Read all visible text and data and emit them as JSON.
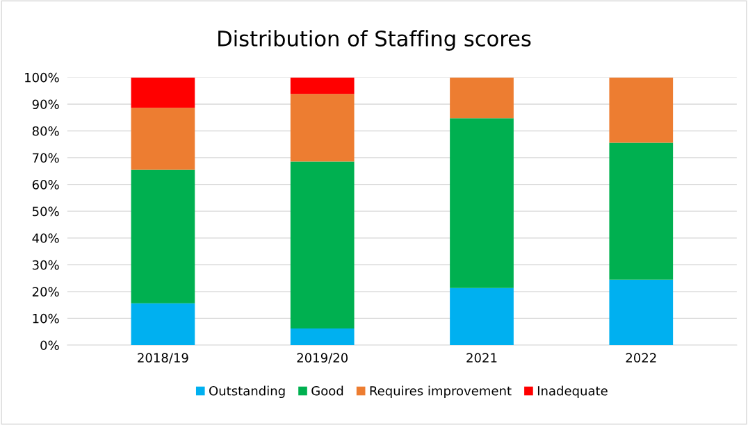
{
  "chart_data": {
    "type": "bar",
    "title": "Distribution of Staffing scores",
    "stacked": true,
    "categories": [
      "2018/19",
      "2019/20",
      "2021",
      "2022"
    ],
    "series": [
      {
        "name": "Outstanding",
        "color": "#00b0f0",
        "values": [
          15.6,
          6.2,
          21.3,
          24.4
        ]
      },
      {
        "name": "Good",
        "color": "#00b050",
        "values": [
          49.9,
          62.4,
          63.4,
          51.2
        ]
      },
      {
        "name": "Requires improvement",
        "color": "#ed7d31",
        "values": [
          23.1,
          25.2,
          15.3,
          24.4
        ]
      },
      {
        "name": "Inadequate",
        "color": "#ff0000",
        "values": [
          11.4,
          6.2,
          0,
          0
        ]
      }
    ],
    "ylim": [
      0,
      100
    ],
    "yticks": [
      {
        "value": 0,
        "label": "0%"
      },
      {
        "value": 10,
        "label": "10%"
      },
      {
        "value": 20,
        "label": "20%"
      },
      {
        "value": 30,
        "label": "30%"
      },
      {
        "value": 40,
        "label": "40%"
      },
      {
        "value": 50,
        "label": "50%"
      },
      {
        "value": 60,
        "label": "60%"
      },
      {
        "value": 70,
        "label": "70%"
      },
      {
        "value": 80,
        "label": "80%"
      },
      {
        "value": 90,
        "label": "90%"
      },
      {
        "value": 100,
        "label": "100%"
      }
    ],
    "grid": "y",
    "legend": "bottom"
  }
}
